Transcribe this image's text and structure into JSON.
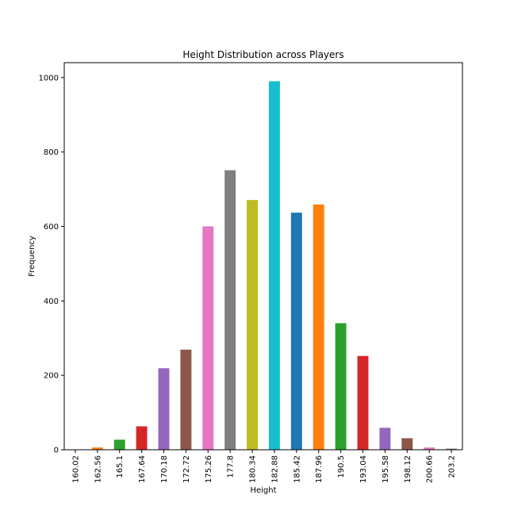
{
  "chart_data": {
    "type": "bar",
    "title": "Height Distribution across Players",
    "xlabel": "Height",
    "ylabel": "Frequency",
    "categories": [
      "160.02",
      "162.56",
      "165.1",
      "167.64",
      "170.18",
      "172.72",
      "175.26",
      "177.8",
      "180.34",
      "182.88",
      "185.42",
      "187.96",
      "190.5",
      "193.04",
      "195.58",
      "198.12",
      "200.66",
      "203.2"
    ],
    "values": [
      1,
      6,
      27,
      63,
      219,
      269,
      600,
      751,
      671,
      990,
      637,
      659,
      340,
      252,
      59,
      31,
      6,
      3
    ],
    "colors": [
      "#1f77b4",
      "#ff7f0e",
      "#2ca02c",
      "#d62728",
      "#9467bd",
      "#8c564b",
      "#e377c2",
      "#7f7f7f",
      "#bcbd22",
      "#17becf",
      "#1f77b4",
      "#ff7f0e",
      "#2ca02c",
      "#d62728",
      "#9467bd",
      "#8c564b",
      "#e377c2",
      "#7f7f7f"
    ],
    "ylim": [
      0,
      1040
    ],
    "yticks": [
      0,
      200,
      400,
      600,
      800,
      1000
    ],
    "grid": false,
    "legend": "none"
  }
}
